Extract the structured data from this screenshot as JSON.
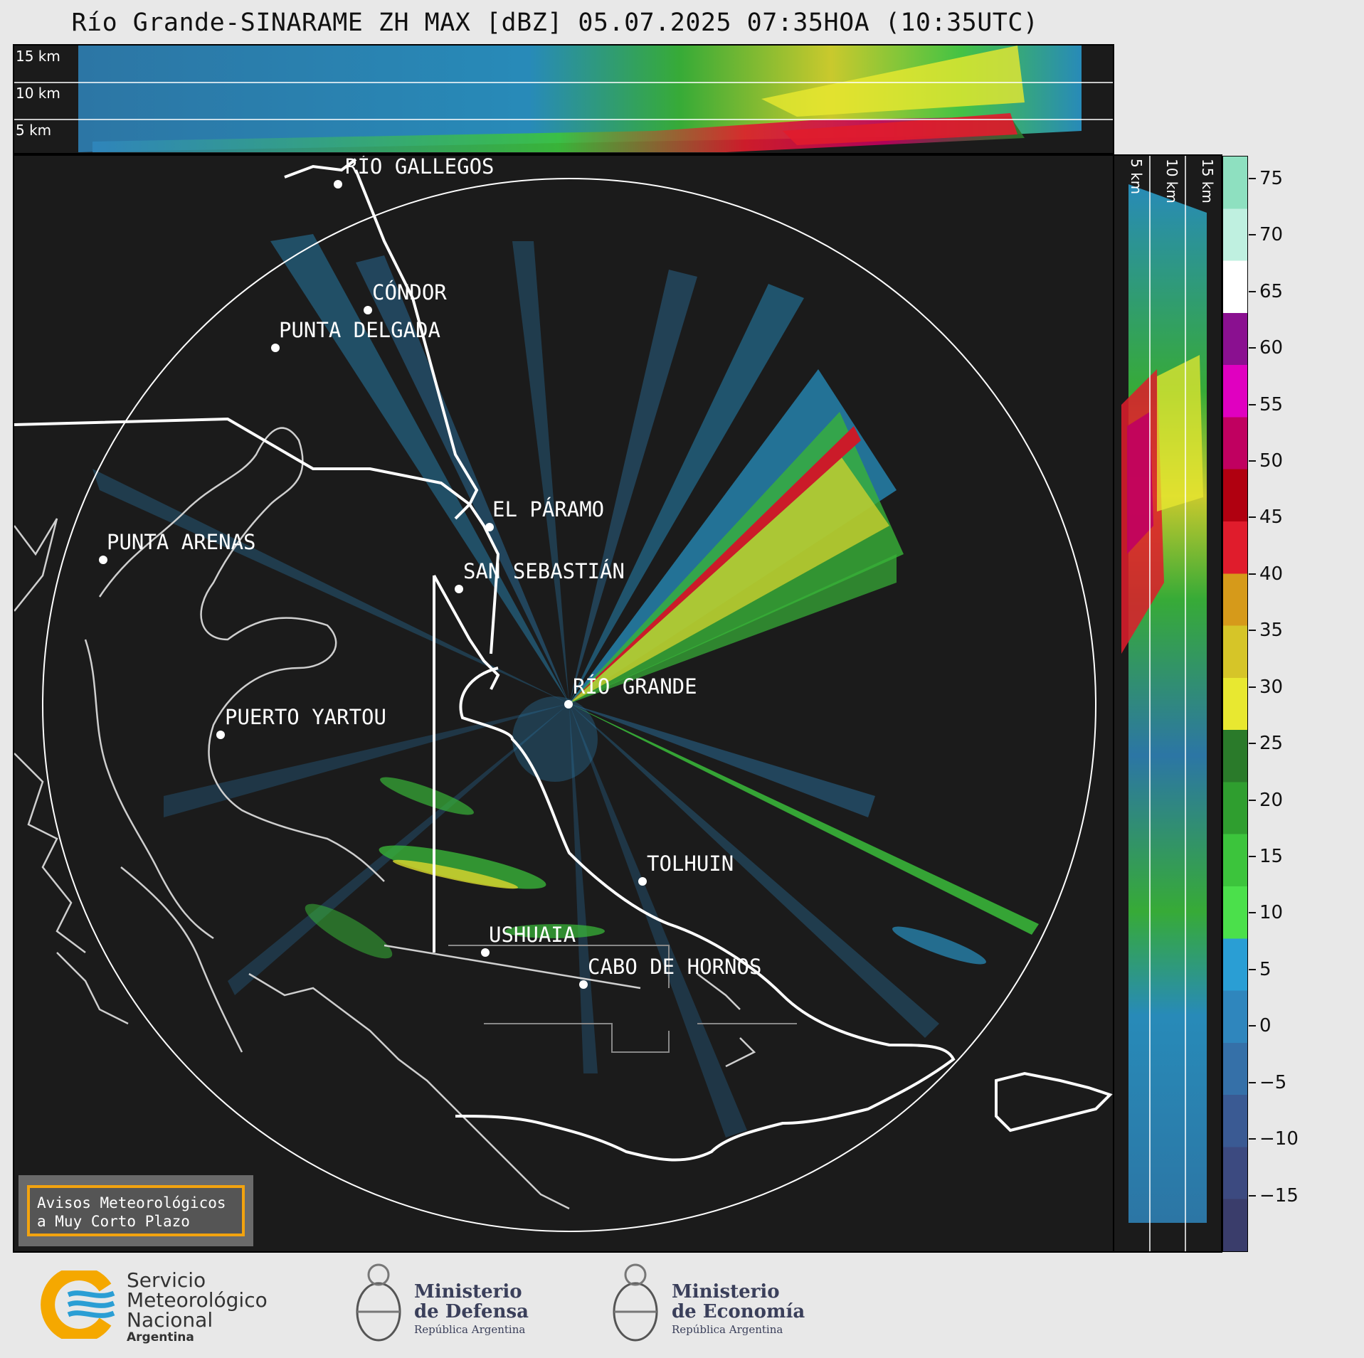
{
  "title": "Río Grande-SINARAME ZH MAX [dBZ] 05.07.2025 07:35HOA (10:35UTC)",
  "top_panel": {
    "height_labels": [
      "15 km",
      "10 km",
      "5 km"
    ]
  },
  "side_panel": {
    "height_labels": [
      "5 km",
      "10 km",
      "15 km"
    ]
  },
  "cities": [
    "RÍO GALLEGOS",
    "CÓNDOR",
    "PUNTA DELGADA",
    "PUNTA ARENAS",
    "EL PÁRAMO",
    "SAN SEBASTIÁN",
    "RÍO GRANDE",
    "PUERTO YARTOU",
    "TOLHUIN",
    "USHUAIA",
    "CABO DE HORNOS"
  ],
  "colorbar": {
    "ticks": [
      "75",
      "70",
      "65",
      "60",
      "55",
      "50",
      "45",
      "40",
      "35",
      "30",
      "25",
      "20",
      "15",
      "10",
      "5",
      "0",
      "−5",
      "−10",
      "−15"
    ],
    "colors": [
      "#3a3d6b",
      "#3c4a80",
      "#3a5a93",
      "#3570a8",
      "#2f86bd",
      "#2a9ed4",
      "#4be04b",
      "#3cc43c",
      "#2f9e2f",
      "#2a7a2a",
      "#e8e830",
      "#d6c528",
      "#d69a1a",
      "#e01c2c",
      "#b00010",
      "#c00060",
      "#e000c0",
      "#8a1090",
      "#ffffff",
      "#bff0e0",
      "#8ee0c0"
    ],
    "range": [
      -20,
      77
    ]
  },
  "aviso": {
    "line1": "Avisos Meteorológicos",
    "line2": "a Muy Corto Plazo"
  },
  "logos": {
    "smn": {
      "line1": "Servicio",
      "line2": "Meteorológico",
      "line3": "Nacional",
      "line4": "Argentina"
    },
    "defensa": {
      "line1": "Ministerio",
      "line2": "de Defensa",
      "line3": "República Argentina"
    },
    "economia": {
      "line1": "Ministerio",
      "line2": "de Economía",
      "line3": "República Argentina"
    }
  }
}
